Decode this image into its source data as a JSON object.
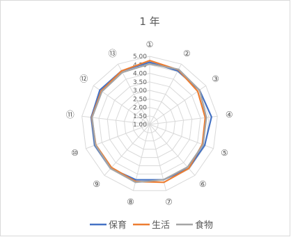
{
  "chart_data": {
    "type": "radar",
    "title": "1 年",
    "categories": [
      "①",
      "②",
      "③",
      "④",
      "⑤",
      "⑥",
      "⑦",
      "⑧",
      "⑨",
      "⑩",
      "⑪",
      "⑫",
      "⑬"
    ],
    "rlim": [
      1.0,
      5.0
    ],
    "ticks": [
      "1.00",
      "1.50",
      "2.00",
      "2.50",
      "3.00",
      "3.50",
      "4.00",
      "4.50",
      "5.00"
    ],
    "grid": true,
    "legend_position": "bottom",
    "series": [
      {
        "name": "保育",
        "color": "#4472C4",
        "values": [
          4.65,
          4.55,
          4.55,
          4.65,
          4.45,
          4.45,
          4.35,
          4.35,
          4.45,
          4.45,
          4.45,
          4.55,
          4.55
        ]
      },
      {
        "name": "生活",
        "color": "#ED7D31",
        "values": [
          4.75,
          4.62,
          4.42,
          4.28,
          4.3,
          4.45,
          4.5,
          4.45,
          4.38,
          4.38,
          4.42,
          4.45,
          4.55
        ]
      },
      {
        "name": "食物",
        "color": "#A5A5A5",
        "values": [
          4.55,
          4.65,
          4.55,
          4.35,
          4.35,
          4.35,
          4.35,
          4.5,
          4.45,
          4.4,
          4.4,
          4.4,
          4.45
        ]
      }
    ]
  }
}
